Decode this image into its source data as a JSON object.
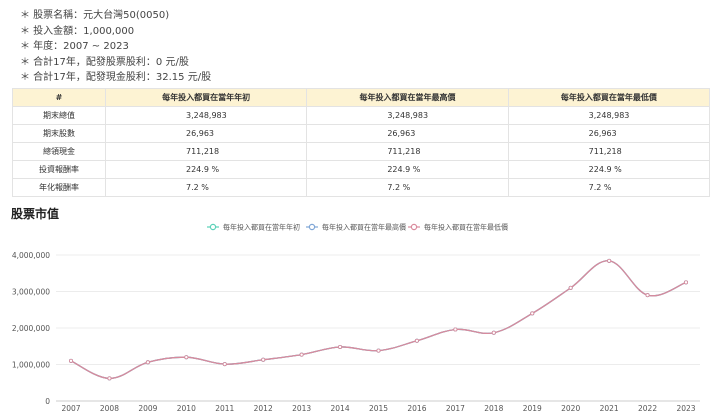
{
  "info": {
    "lines": [
      "＊ 股票名稱：元大台灣50(0050)",
      "＊ 投入金額：1,000,000",
      "＊ 年度：2007 ~ 2023",
      "＊ 合計17年，配發股票股利：0 元/股",
      "＊ 合計17年，配發現金股利：32.15 元/股"
    ]
  },
  "table": {
    "headers": [
      "#",
      "每年投入都買在當年年初",
      "每年投入都買在當年最高價",
      "每年投入都買在當年最低價"
    ],
    "rows": [
      [
        "期末總值",
        "3,248,983",
        "3,248,983",
        "3,248,983"
      ],
      [
        "期末股數",
        "26,963",
        "26,963",
        "26,963"
      ],
      [
        "總領現金",
        "711,218",
        "711,218",
        "711,218"
      ],
      [
        "投資報酬率",
        "224.9 %",
        "224.9 %",
        "224.9 %"
      ],
      [
        "年化報酬率",
        "7.2 %",
        "7.2 %",
        "7.2 %"
      ]
    ]
  },
  "section_title": "股票市值",
  "chart_data": {
    "type": "line",
    "x": [
      "2007",
      "2008",
      "2009",
      "2010",
      "2011",
      "2012",
      "2013",
      "2014",
      "2015",
      "2016",
      "2017",
      "2018",
      "2019",
      "2020",
      "2021",
      "2022",
      "2023"
    ],
    "series": [
      {
        "name": "每年投入都買在當年年初",
        "color": "#5ad1b8",
        "values": [
          1100000,
          620000,
          1060000,
          1200000,
          1010000,
          1130000,
          1270000,
          1480000,
          1380000,
          1650000,
          1960000,
          1870000,
          2400000,
          3100000,
          3840000,
          2900000,
          3250000
        ]
      },
      {
        "name": "每年投入都買在當年最高價",
        "color": "#7fa6d6",
        "values": [
          1100000,
          620000,
          1060000,
          1200000,
          1010000,
          1130000,
          1270000,
          1480000,
          1380000,
          1650000,
          1960000,
          1870000,
          2400000,
          3100000,
          3840000,
          2900000,
          3250000
        ]
      },
      {
        "name": "每年投入都買在當年最低價",
        "color": "#d98a9c",
        "values": [
          1100000,
          620000,
          1060000,
          1200000,
          1010000,
          1130000,
          1270000,
          1480000,
          1380000,
          1650000,
          1960000,
          1870000,
          2400000,
          3100000,
          3840000,
          2900000,
          3250000
        ]
      }
    ],
    "y_ticks": [
      "0",
      "1,000,000",
      "2,000,000",
      "3,000,000",
      "4,000,000"
    ],
    "ylim": [
      0,
      4000000
    ],
    "grid": true,
    "legend": "top-center"
  }
}
